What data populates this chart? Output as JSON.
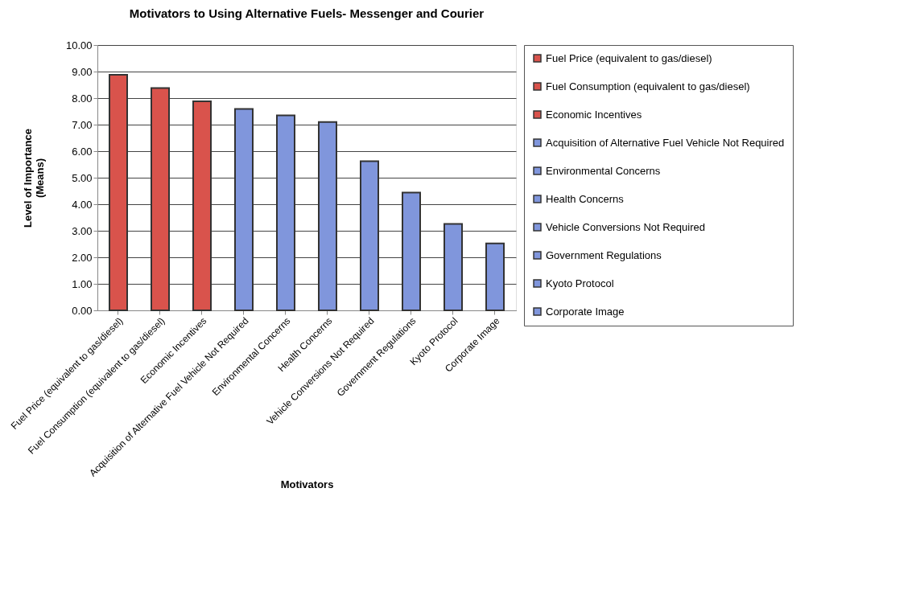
{
  "chart_data": {
    "type": "bar",
    "title": "Motivators to Using Alternative Fuels- Messenger and Courier",
    "xlabel": "Motivators",
    "ylabel": "Level of Importance\n(Means)",
    "categories": [
      "Fuel Price (equivalent to gas/diesel)",
      "Fuel Consumption (equivalent to gas/diesel)",
      "Economic Incentives",
      "Acquisition of Alternative Fuel Vehicle Not Required",
      "Environmental Concerns",
      "Health Concerns",
      "Vehicle Conversions Not Required",
      "Government Regulations",
      "Kyoto Protocol",
      "Corporate Image"
    ],
    "series": [
      {
        "name": "Fuel Price (equivalent to gas/diesel)",
        "color": "#d9534c",
        "values": [
          8.88,
          null,
          null,
          null,
          null,
          null,
          null,
          null,
          null,
          null
        ]
      },
      {
        "name": "Fuel Consumption (equivalent to gas/diesel)",
        "color": "#d9534c",
        "values": [
          null,
          8.38,
          null,
          null,
          null,
          null,
          null,
          null,
          null,
          null
        ]
      },
      {
        "name": "Economic Incentives",
        "color": "#d9534c",
        "values": [
          null,
          null,
          7.88,
          null,
          null,
          null,
          null,
          null,
          null,
          null
        ]
      },
      {
        "name": "Acquisition of Alternative Fuel Vehicle Not Required",
        "color": "#8096dc",
        "values": [
          null,
          null,
          null,
          7.59,
          null,
          null,
          null,
          null,
          null,
          null
        ]
      },
      {
        "name": "Environmental Concerns",
        "color": "#8096dc",
        "values": [
          null,
          null,
          null,
          null,
          7.35,
          null,
          null,
          null,
          null,
          null
        ]
      },
      {
        "name": "Health Concerns",
        "color": "#8096dc",
        "values": [
          null,
          null,
          null,
          null,
          null,
          7.1,
          null,
          null,
          null,
          null
        ]
      },
      {
        "name": "Vehicle Conversions Not Required",
        "color": "#8096dc",
        "values": [
          null,
          null,
          null,
          null,
          null,
          null,
          5.62,
          null,
          null,
          null
        ]
      },
      {
        "name": "Government Regulations",
        "color": "#8096dc",
        "values": [
          null,
          null,
          null,
          null,
          null,
          null,
          null,
          4.44,
          null,
          null
        ]
      },
      {
        "name": "Kyoto Protocol",
        "color": "#8096dc",
        "values": [
          null,
          null,
          null,
          null,
          null,
          null,
          null,
          null,
          3.26,
          null
        ]
      },
      {
        "name": "Corporate Image",
        "color": "#8096dc",
        "values": [
          null,
          null,
          null,
          null,
          null,
          null,
          null,
          null,
          null,
          2.52
        ]
      }
    ],
    "ylim": [
      0,
      10
    ],
    "yticks": [
      {
        "value": 0,
        "label": "0.00"
      },
      {
        "value": 1,
        "label": "1.00"
      },
      {
        "value": 2,
        "label": "2.00"
      },
      {
        "value": 3,
        "label": "3.00"
      },
      {
        "value": 4,
        "label": "4.00"
      },
      {
        "value": 5,
        "label": "5.00"
      },
      {
        "value": 6,
        "label": "6.00"
      },
      {
        "value": 7,
        "label": "7.00"
      },
      {
        "value": 8,
        "label": "8.00"
      },
      {
        "value": 9,
        "label": "9.00"
      },
      {
        "value": 10,
        "label": "10.00"
      }
    ],
    "grid": "y",
    "legend": "right"
  }
}
